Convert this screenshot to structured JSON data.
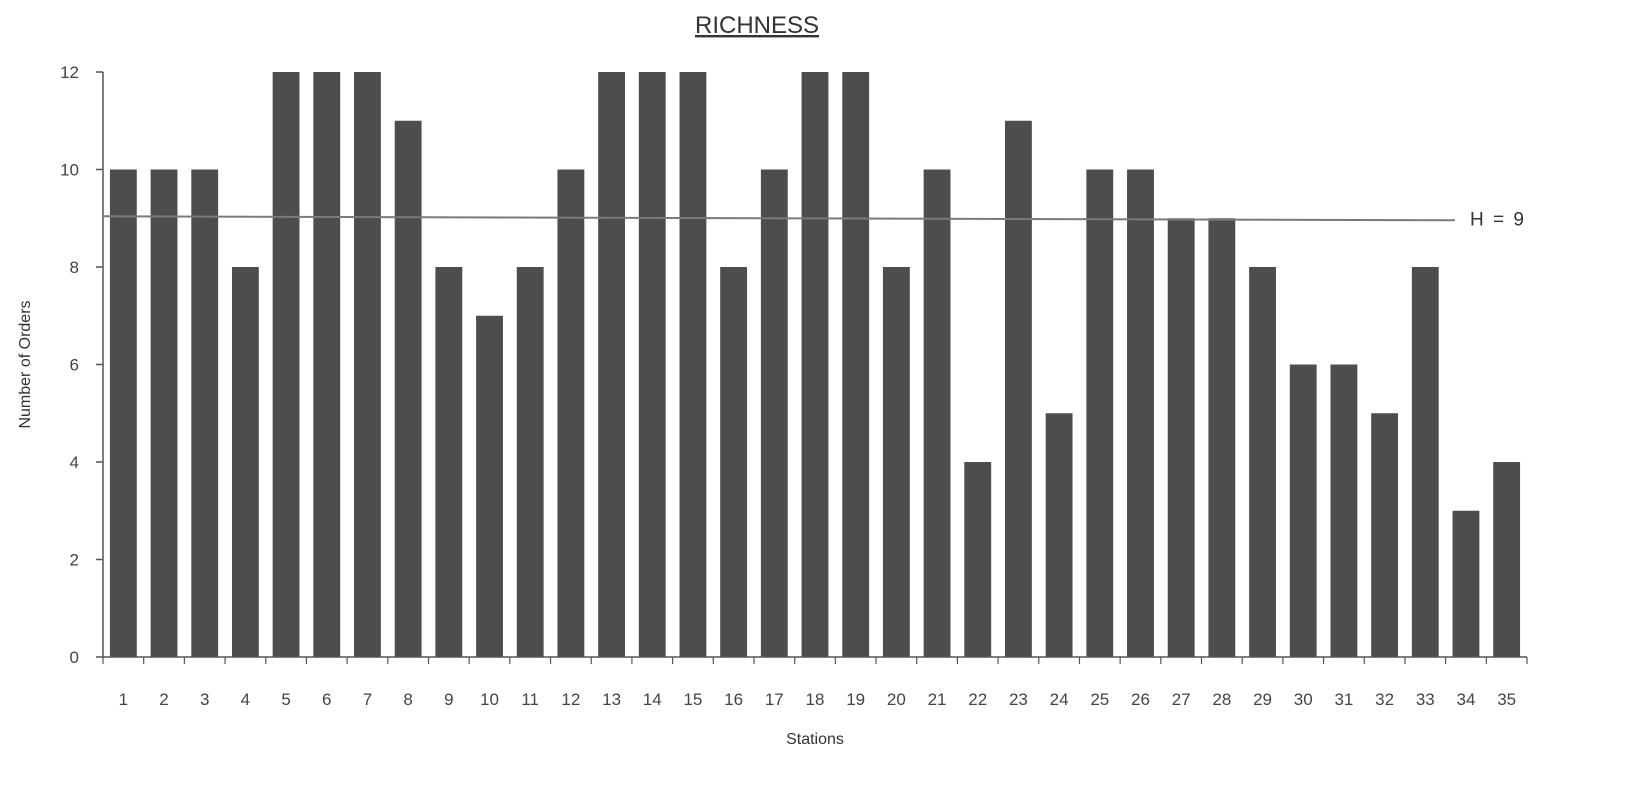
{
  "chart_data": {
    "type": "bar",
    "title": "RICHNESS",
    "xlabel": "Stations",
    "ylabel": "Number of Orders",
    "ylim": [
      0,
      12
    ],
    "yticks": [
      0,
      2,
      4,
      6,
      8,
      10,
      12
    ],
    "categories": [
      "1",
      "2",
      "3",
      "4",
      "5",
      "6",
      "7",
      "8",
      "9",
      "10",
      "11",
      "12",
      "13",
      "14",
      "15",
      "16",
      "17",
      "18",
      "19",
      "20",
      "21",
      "22",
      "23",
      "24",
      "25",
      "26",
      "27",
      "28",
      "29",
      "30",
      "31",
      "32",
      "33",
      "34",
      "35"
    ],
    "values": [
      10,
      10,
      10,
      8,
      12,
      12,
      12,
      11,
      8,
      7,
      8,
      10,
      12,
      12,
      12,
      8,
      10,
      12,
      12,
      8,
      10,
      4,
      11,
      5,
      10,
      10,
      9,
      9,
      8,
      6,
      6,
      5,
      8,
      3,
      4
    ],
    "reference_line": {
      "value": 9,
      "label": "H = 9"
    },
    "bar_color": "#4d4d4d",
    "grid": false,
    "legend": "none"
  }
}
